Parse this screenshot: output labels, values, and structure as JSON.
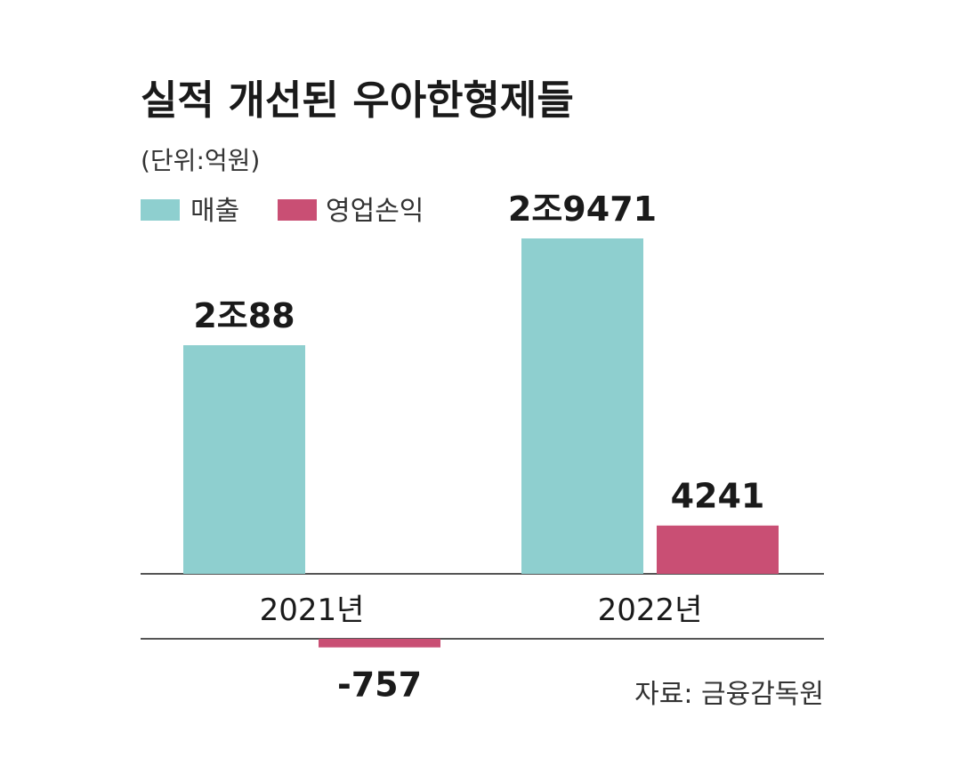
{
  "chart_data": {
    "type": "bar",
    "title": "실적 개선된 우아한형제들",
    "unit_label": "(단위:억원)",
    "source": "자료: 금융감독원",
    "categories": [
      "2021년",
      "2022년"
    ],
    "series": [
      {
        "name": "매출",
        "color": "#8ecfcf",
        "values": [
          20088,
          29471
        ],
        "value_labels": [
          "2조88",
          "2조9471"
        ]
      },
      {
        "name": "영업손익",
        "color": "#c94f74",
        "values": [
          -757,
          4241
        ],
        "value_labels": [
          "-757",
          "4241"
        ]
      }
    ],
    "legend_position": "top-left",
    "grid": false
  }
}
